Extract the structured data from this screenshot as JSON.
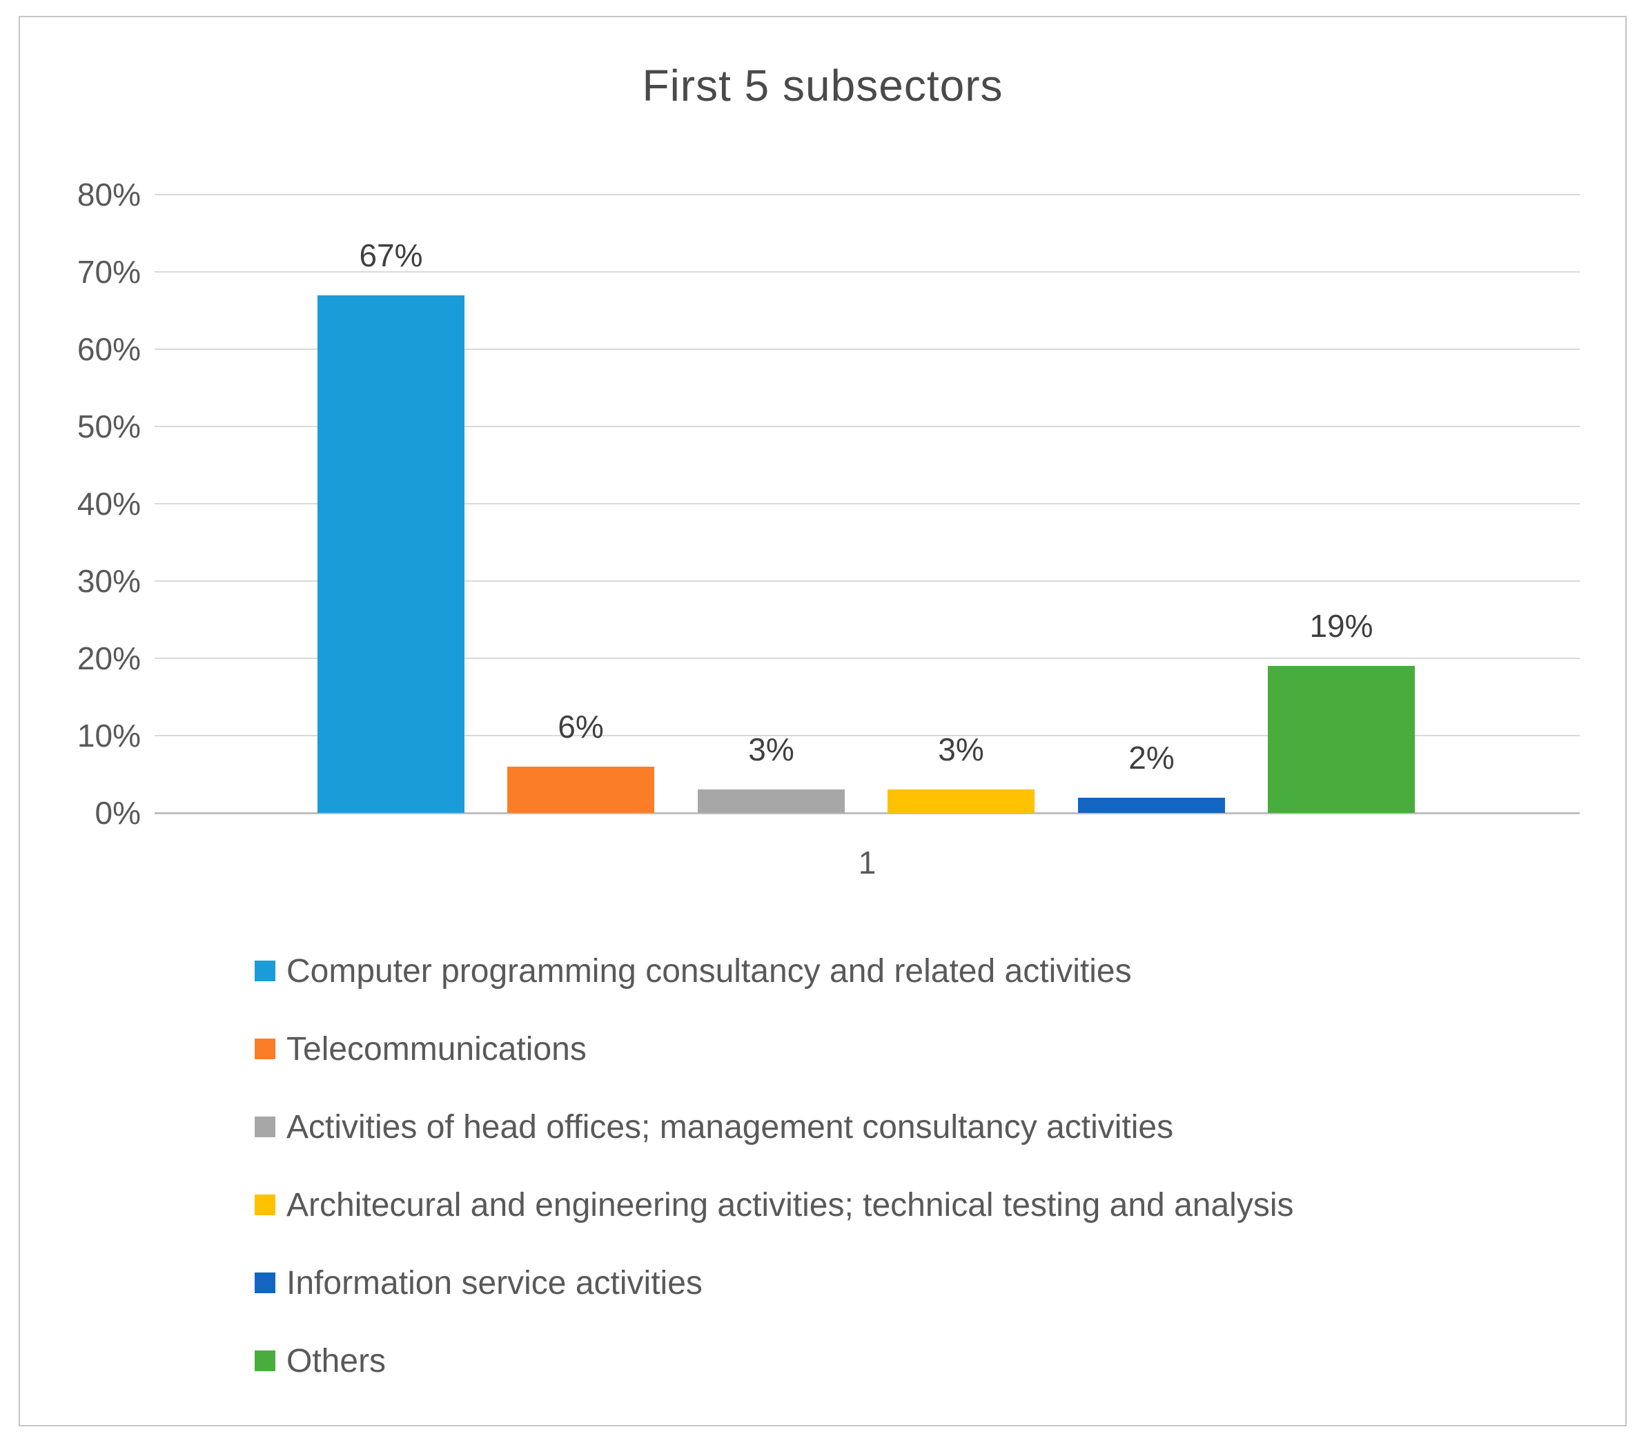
{
  "chart_data": {
    "type": "bar",
    "title": "First 5 subsectors",
    "x_category_label": "1",
    "xlabel": "",
    "ylabel": "",
    "ylim": [
      0,
      80
    ],
    "y_ticks": [
      "80%",
      "70%",
      "60%",
      "50%",
      "40%",
      "30%",
      "20%",
      "10%",
      "0%"
    ],
    "grid": true,
    "legend_position": "bottom",
    "series": [
      {
        "name": "Computer programming consultancy and related activities",
        "value": 67,
        "label": "67%",
        "color": "#1a9cd9"
      },
      {
        "name": "Telecommunications",
        "value": 6,
        "label": "6%",
        "color": "#fb7d28"
      },
      {
        "name": "Activities of head offices; management consultancy activities",
        "value": 3,
        "label": "3%",
        "color": "#a7a7a7"
      },
      {
        "name": "Architecural and engineering activities; technical testing and analysis",
        "value": 3,
        "label": "3%",
        "color": "#ffc100"
      },
      {
        "name": "Information service activities",
        "value": 2,
        "label": "2%",
        "color": "#1265c1"
      },
      {
        "name": "Others",
        "value": 19,
        "label": "19%",
        "color": "#48ad3c"
      }
    ]
  }
}
